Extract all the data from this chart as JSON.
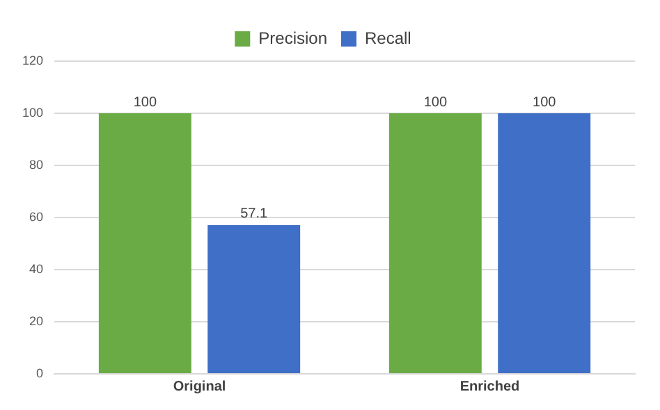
{
  "chart_data": {
    "type": "bar",
    "categories": [
      "Original",
      "Enriched"
    ],
    "series": [
      {
        "name": "Precision",
        "color": "#6aab45",
        "values": [
          100,
          100
        ]
      },
      {
        "name": "Recall",
        "color": "#3f6fc6",
        "values": [
          57.1,
          100
        ]
      }
    ],
    "ylim": [
      0,
      120
    ],
    "yticks": [
      0,
      20,
      40,
      60,
      80,
      100,
      120
    ],
    "grid": "y",
    "legend": "top",
    "data_labels": true
  }
}
